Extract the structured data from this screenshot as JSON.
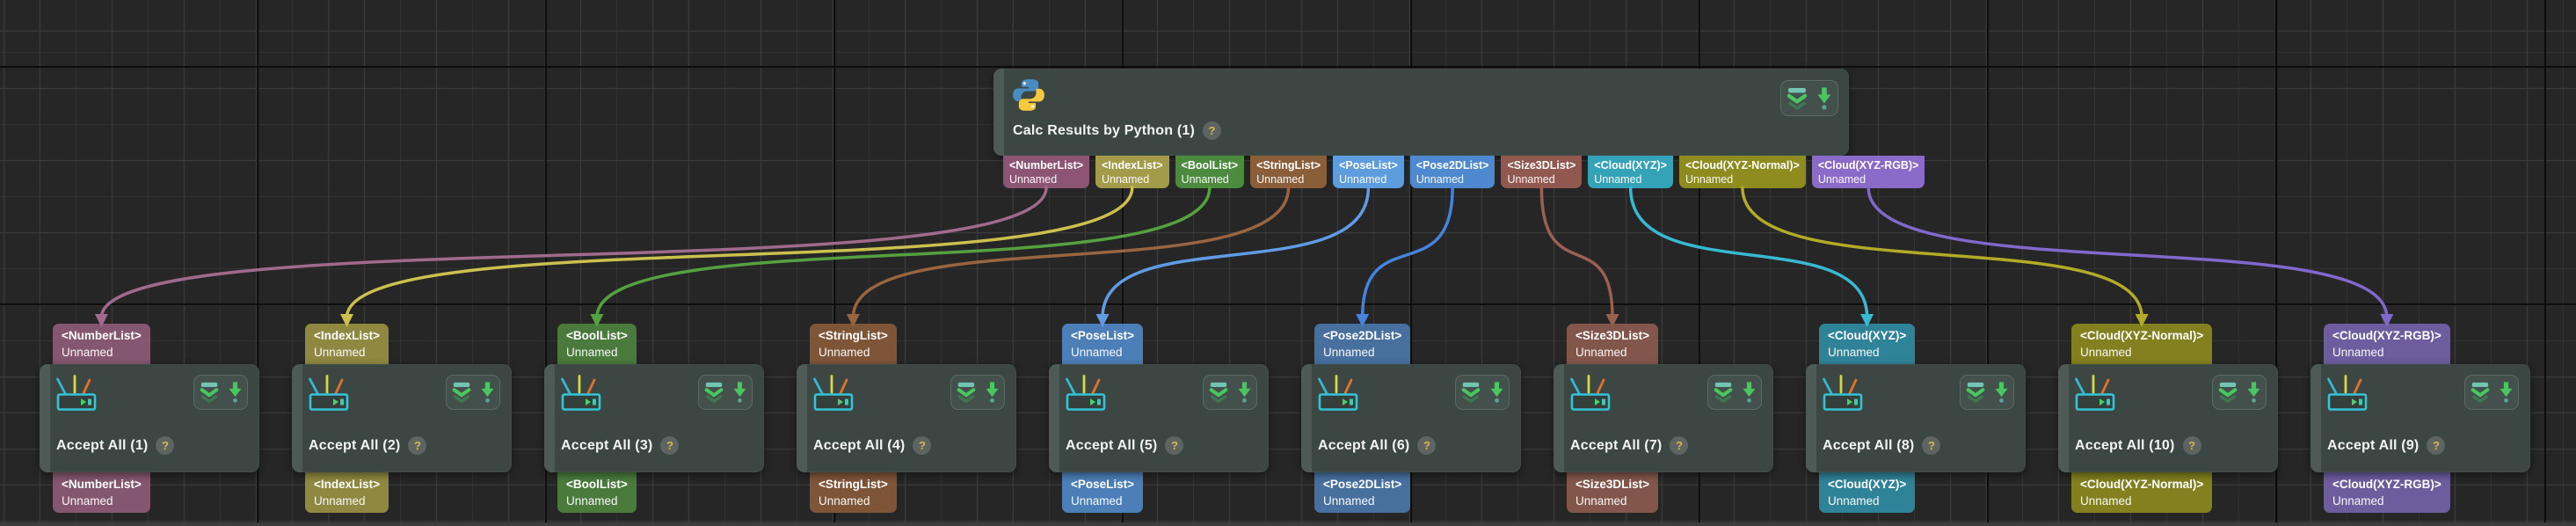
{
  "canvas": {
    "background": "#262626",
    "grid_minor_color": "#3a3a3a",
    "grid_major_color": "#0b0b0b"
  },
  "source_node": {
    "title": "Calc Results by Python (1)",
    "help_badge": "?",
    "icons": {
      "header": "python-icon",
      "collapse": "chevrons-down-icon",
      "output": "arrow-down-icon"
    },
    "outputs": [
      {
        "type": "<NumberList>",
        "name": "Unnamed",
        "color": "#8d5573",
        "wire_color": "#a06a8d"
      },
      {
        "type": "<IndexList>",
        "name": "Unnamed",
        "color": "#a39b4a",
        "wire_color": "#ccc04e"
      },
      {
        "type": "<BoolList>",
        "name": "Unnamed",
        "color": "#4c8b3e",
        "wire_color": "#55a13f"
      },
      {
        "type": "<StringList>",
        "name": "Unnamed",
        "color": "#8b5e3a",
        "wire_color": "#99653f"
      },
      {
        "type": "<PoseList>",
        "name": "Unnamed",
        "color": "#5d9cdd",
        "wire_color": "#5f9ce5"
      },
      {
        "type": "<Pose2DList>",
        "name": "Unnamed",
        "color": "#4e88cf",
        "wire_color": "#4583dd"
      },
      {
        "type": "<Size3DList>",
        "name": "Unnamed",
        "color": "#90584e",
        "wire_color": "#9c6050"
      },
      {
        "type": "<Cloud(XYZ)>",
        "name": "Unnamed",
        "color": "#35a3b7",
        "wire_color": "#38b9d2"
      },
      {
        "type": "<Cloud(XYZ-Normal)>",
        "name": "Unnamed",
        "color": "#8e8b1f",
        "wire_color": "#b1ab27"
      },
      {
        "type": "<Cloud(XYZ-RGB)>",
        "name": "Unnamed",
        "color": "#8a6bc9",
        "wire_color": "#8168cc"
      }
    ]
  },
  "accept_nodes": [
    {
      "title": "Accept All (1)",
      "help_badge": "?",
      "input": {
        "type": "<NumberList>",
        "name": "Unnamed",
        "color": "#84566f"
      },
      "output": {
        "type": "<NumberList>",
        "name": "Unnamed",
        "color": "#84566f"
      }
    },
    {
      "title": "Accept All (2)",
      "help_badge": "?",
      "input": {
        "type": "<IndexList>",
        "name": "Unnamed",
        "color": "#8f8841"
      },
      "output": {
        "type": "<IndexList>",
        "name": "Unnamed",
        "color": "#8f8841"
      }
    },
    {
      "title": "Accept All (3)",
      "help_badge": "?",
      "input": {
        "type": "<BoolList>",
        "name": "Unnamed",
        "color": "#4a7a3c"
      },
      "output": {
        "type": "<BoolList>",
        "name": "Unnamed",
        "color": "#4a7a3c"
      }
    },
    {
      "title": "Accept All (4)",
      "help_badge": "?",
      "input": {
        "type": "<StringList>",
        "name": "Unnamed",
        "color": "#7f5538"
      },
      "output": {
        "type": "<StringList>",
        "name": "Unnamed",
        "color": "#7f5538"
      }
    },
    {
      "title": "Accept All (5)",
      "help_badge": "?",
      "input": {
        "type": "<PoseList>",
        "name": "Unnamed",
        "color": "#4c7fb8"
      },
      "output": {
        "type": "<PoseList>",
        "name": "Unnamed",
        "color": "#4c7fb8"
      }
    },
    {
      "title": "Accept All (6)",
      "help_badge": "?",
      "input": {
        "type": "<Pose2DList>",
        "name": "Unnamed",
        "color": "#47709f"
      },
      "output": {
        "type": "<Pose2DList>",
        "name": "Unnamed",
        "color": "#47709f"
      }
    },
    {
      "title": "Accept All (7)",
      "help_badge": "?",
      "input": {
        "type": "<Size3DList>",
        "name": "Unnamed",
        "color": "#82564b"
      },
      "output": {
        "type": "<Size3DList>",
        "name": "Unnamed",
        "color": "#82564b"
      }
    },
    {
      "title": "Accept All (8)",
      "help_badge": "?",
      "input": {
        "type": "<Cloud(XYZ)>",
        "name": "Unnamed",
        "color": "#2f8398"
      },
      "output": {
        "type": "<Cloud(XYZ)>",
        "name": "Unnamed",
        "color": "#2f8398"
      }
    },
    {
      "title": "Accept All (10)",
      "help_badge": "?",
      "input": {
        "type": "<Cloud(XYZ-Normal)>",
        "name": "Unnamed",
        "color": "#82801f"
      },
      "output": {
        "type": "<Cloud(XYZ-Normal)>",
        "name": "Unnamed",
        "color": "#82801f"
      }
    },
    {
      "title": "Accept All (9)",
      "help_badge": "?",
      "input": {
        "type": "<Cloud(XYZ-RGB)>",
        "name": "Unnamed",
        "color": "#6d5c9e"
      },
      "output": {
        "type": "<Cloud(XYZ-RGB)>",
        "name": "Unnamed",
        "color": "#6d5c9e"
      }
    }
  ],
  "connections": [
    {
      "from_output": 0,
      "to_node": 0
    },
    {
      "from_output": 1,
      "to_node": 1
    },
    {
      "from_output": 2,
      "to_node": 2
    },
    {
      "from_output": 3,
      "to_node": 3
    },
    {
      "from_output": 4,
      "to_node": 4
    },
    {
      "from_output": 5,
      "to_node": 5
    },
    {
      "from_output": 6,
      "to_node": 6
    },
    {
      "from_output": 7,
      "to_node": 7
    },
    {
      "from_output": 8,
      "to_node": 8
    },
    {
      "from_output": 9,
      "to_node": 9
    }
  ]
}
